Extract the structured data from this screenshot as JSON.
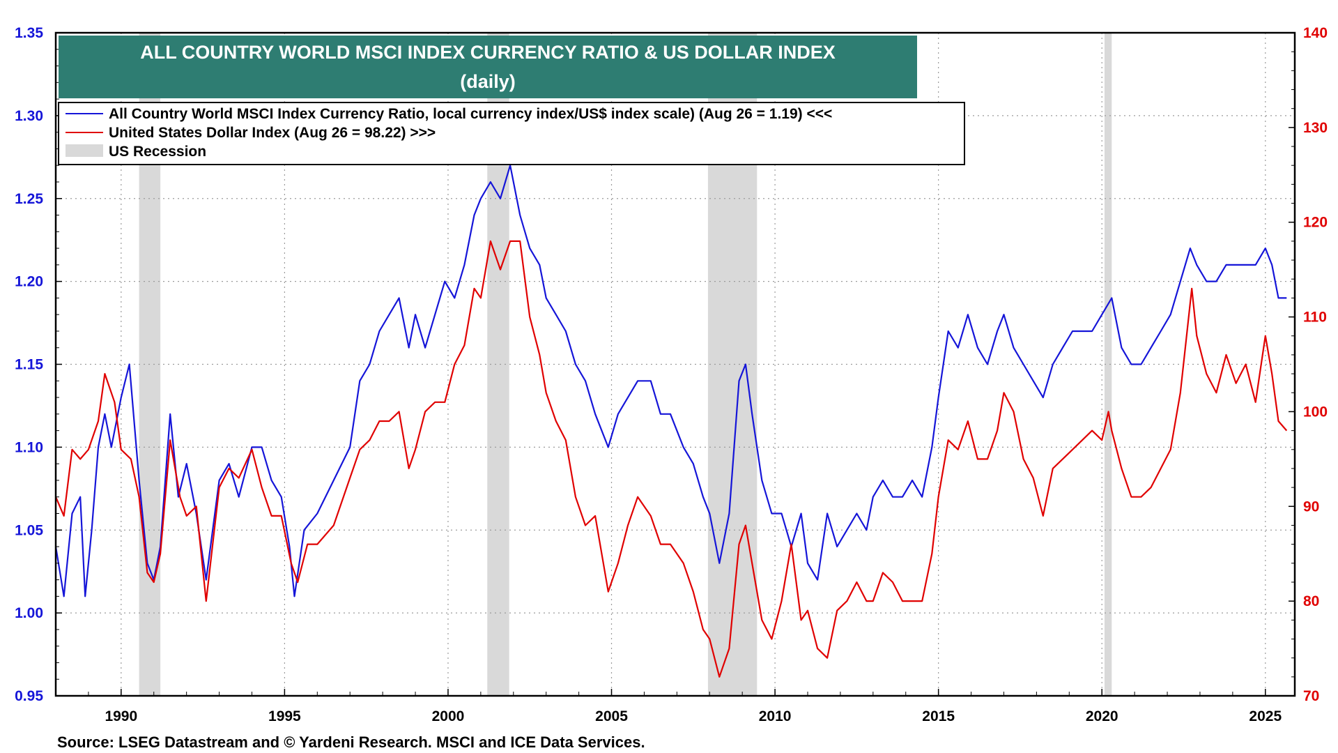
{
  "chart_data": {
    "type": "line",
    "title": "ALL COUNTRY WORLD MSCI INDEX CURRENCY RATIO & US DOLLAR INDEX",
    "subtitle": "(daily)",
    "source": "Source: LSEG Datastream and © Yardeni Research. MSCI and ICE Data Services.",
    "xlim": [
      1988.0,
      2025.9
    ],
    "x_ticks": [
      1990,
      1995,
      2000,
      2005,
      2010,
      2015,
      2020,
      2025
    ],
    "x_tick_labels": [
      "1990",
      "1995",
      "2000",
      "2005",
      "2010",
      "2015",
      "2020",
      "2025"
    ],
    "y_left": {
      "lim": [
        0.95,
        1.35
      ],
      "ticks": [
        0.95,
        1.0,
        1.05,
        1.1,
        1.15,
        1.2,
        1.25,
        1.3,
        1.35
      ],
      "tick_labels": [
        "0.95",
        "1.00",
        "1.05",
        "1.10",
        "1.15",
        "1.20",
        "1.25",
        "1.30",
        "1.35"
      ],
      "color": "#1515d8"
    },
    "y_right": {
      "lim": [
        70,
        140
      ],
      "ticks": [
        70,
        80,
        90,
        100,
        110,
        120,
        130,
        140
      ],
      "tick_labels": [
        "70",
        "80",
        "90",
        "100",
        "110",
        "120",
        "130",
        "140"
      ],
      "color": "#e00000"
    },
    "grid": true,
    "legend_position": "top-left",
    "recessions": [
      {
        "start": 1990.55,
        "end": 1991.2
      },
      {
        "start": 2001.2,
        "end": 2001.87
      },
      {
        "start": 2007.95,
        "end": 2009.45
      },
      {
        "start": 2020.08,
        "end": 2020.3
      }
    ],
    "recession_color": "#d9d9d9",
    "recession_label": "US Recession",
    "series": [
      {
        "name": "All Country World MSCI Index Currency Ratio, local currency index/US$ index scale) (Aug 26 = 1.19) <<<",
        "axis": "left",
        "color": "#1515d8",
        "points": [
          [
            1988.0,
            1.04
          ],
          [
            1988.25,
            1.01
          ],
          [
            1988.5,
            1.06
          ],
          [
            1988.75,
            1.07
          ],
          [
            1988.9,
            1.01
          ],
          [
            1989.1,
            1.05
          ],
          [
            1989.3,
            1.1
          ],
          [
            1989.5,
            1.12
          ],
          [
            1989.7,
            1.1
          ],
          [
            1990.0,
            1.13
          ],
          [
            1990.25,
            1.15
          ],
          [
            1990.55,
            1.08
          ],
          [
            1990.8,
            1.03
          ],
          [
            1991.0,
            1.02
          ],
          [
            1991.2,
            1.04
          ],
          [
            1991.5,
            1.12
          ],
          [
            1991.75,
            1.07
          ],
          [
            1992.0,
            1.09
          ],
          [
            1992.3,
            1.06
          ],
          [
            1992.6,
            1.02
          ],
          [
            1992.8,
            1.05
          ],
          [
            1993.0,
            1.08
          ],
          [
            1993.3,
            1.09
          ],
          [
            1993.6,
            1.07
          ],
          [
            1994.0,
            1.1
          ],
          [
            1994.3,
            1.1
          ],
          [
            1994.6,
            1.08
          ],
          [
            1994.9,
            1.07
          ],
          [
            1995.15,
            1.04
          ],
          [
            1995.3,
            1.01
          ],
          [
            1995.6,
            1.05
          ],
          [
            1996.0,
            1.06
          ],
          [
            1996.5,
            1.08
          ],
          [
            1997.0,
            1.1
          ],
          [
            1997.3,
            1.14
          ],
          [
            1997.6,
            1.15
          ],
          [
            1997.9,
            1.17
          ],
          [
            1998.2,
            1.18
          ],
          [
            1998.5,
            1.19
          ],
          [
            1998.8,
            1.16
          ],
          [
            1999.0,
            1.18
          ],
          [
            1999.3,
            1.16
          ],
          [
            1999.6,
            1.18
          ],
          [
            1999.9,
            1.2
          ],
          [
            2000.2,
            1.19
          ],
          [
            2000.5,
            1.21
          ],
          [
            2000.8,
            1.24
          ],
          [
            2001.0,
            1.25
          ],
          [
            2001.3,
            1.26
          ],
          [
            2001.6,
            1.25
          ],
          [
            2001.9,
            1.27
          ],
          [
            2002.2,
            1.24
          ],
          [
            2002.5,
            1.22
          ],
          [
            2002.8,
            1.21
          ],
          [
            2003.0,
            1.19
          ],
          [
            2003.3,
            1.18
          ],
          [
            2003.6,
            1.17
          ],
          [
            2003.9,
            1.15
          ],
          [
            2004.2,
            1.14
          ],
          [
            2004.5,
            1.12
          ],
          [
            2004.9,
            1.1
          ],
          [
            2005.2,
            1.12
          ],
          [
            2005.5,
            1.13
          ],
          [
            2005.8,
            1.14
          ],
          [
            2006.2,
            1.14
          ],
          [
            2006.5,
            1.12
          ],
          [
            2006.8,
            1.12
          ],
          [
            2007.2,
            1.1
          ],
          [
            2007.5,
            1.09
          ],
          [
            2007.8,
            1.07
          ],
          [
            2008.0,
            1.06
          ],
          [
            2008.3,
            1.03
          ],
          [
            2008.6,
            1.06
          ],
          [
            2008.9,
            1.14
          ],
          [
            2009.1,
            1.15
          ],
          [
            2009.3,
            1.12
          ],
          [
            2009.6,
            1.08
          ],
          [
            2009.9,
            1.06
          ],
          [
            2010.2,
            1.06
          ],
          [
            2010.5,
            1.04
          ],
          [
            2010.8,
            1.06
          ],
          [
            2011.0,
            1.03
          ],
          [
            2011.3,
            1.02
          ],
          [
            2011.6,
            1.06
          ],
          [
            2011.9,
            1.04
          ],
          [
            2012.2,
            1.05
          ],
          [
            2012.5,
            1.06
          ],
          [
            2012.8,
            1.05
          ],
          [
            2013.0,
            1.07
          ],
          [
            2013.3,
            1.08
          ],
          [
            2013.6,
            1.07
          ],
          [
            2013.9,
            1.07
          ],
          [
            2014.2,
            1.08
          ],
          [
            2014.5,
            1.07
          ],
          [
            2014.8,
            1.1
          ],
          [
            2015.0,
            1.13
          ],
          [
            2015.3,
            1.17
          ],
          [
            2015.6,
            1.16
          ],
          [
            2015.9,
            1.18
          ],
          [
            2016.2,
            1.16
          ],
          [
            2016.5,
            1.15
          ],
          [
            2016.8,
            1.17
          ],
          [
            2017.0,
            1.18
          ],
          [
            2017.3,
            1.16
          ],
          [
            2017.6,
            1.15
          ],
          [
            2017.9,
            1.14
          ],
          [
            2018.2,
            1.13
          ],
          [
            2018.5,
            1.15
          ],
          [
            2018.8,
            1.16
          ],
          [
            2019.1,
            1.17
          ],
          [
            2019.4,
            1.17
          ],
          [
            2019.7,
            1.17
          ],
          [
            2020.0,
            1.18
          ],
          [
            2020.3,
            1.19
          ],
          [
            2020.6,
            1.16
          ],
          [
            2020.9,
            1.15
          ],
          [
            2021.2,
            1.15
          ],
          [
            2021.5,
            1.16
          ],
          [
            2021.8,
            1.17
          ],
          [
            2022.1,
            1.18
          ],
          [
            2022.4,
            1.2
          ],
          [
            2022.7,
            1.22
          ],
          [
            2022.9,
            1.21
          ],
          [
            2023.2,
            1.2
          ],
          [
            2023.5,
            1.2
          ],
          [
            2023.8,
            1.21
          ],
          [
            2024.1,
            1.21
          ],
          [
            2024.4,
            1.21
          ],
          [
            2024.7,
            1.21
          ],
          [
            2025.0,
            1.22
          ],
          [
            2025.2,
            1.21
          ],
          [
            2025.4,
            1.19
          ],
          [
            2025.65,
            1.19
          ]
        ]
      },
      {
        "name": "United States Dollar Index (Aug 26 = 98.22) >>>",
        "axis": "right",
        "color": "#e00000",
        "points": [
          [
            1988.0,
            91
          ],
          [
            1988.25,
            89
          ],
          [
            1988.5,
            96
          ],
          [
            1988.75,
            95
          ],
          [
            1989.0,
            96
          ],
          [
            1989.3,
            99
          ],
          [
            1989.5,
            104
          ],
          [
            1989.8,
            101
          ],
          [
            1990.0,
            96
          ],
          [
            1990.3,
            95
          ],
          [
            1990.55,
            91
          ],
          [
            1990.8,
            83
          ],
          [
            1991.0,
            82
          ],
          [
            1991.2,
            85
          ],
          [
            1991.5,
            97
          ],
          [
            1991.8,
            91
          ],
          [
            1992.0,
            89
          ],
          [
            1992.3,
            90
          ],
          [
            1992.6,
            80
          ],
          [
            1992.8,
            86
          ],
          [
            1993.0,
            92
          ],
          [
            1993.3,
            94
          ],
          [
            1993.6,
            93
          ],
          [
            1994.0,
            96
          ],
          [
            1994.3,
            92
          ],
          [
            1994.6,
            89
          ],
          [
            1994.9,
            89
          ],
          [
            1995.2,
            84
          ],
          [
            1995.4,
            82
          ],
          [
            1995.7,
            86
          ],
          [
            1996.0,
            86
          ],
          [
            1996.5,
            88
          ],
          [
            1997.0,
            93
          ],
          [
            1997.3,
            96
          ],
          [
            1997.6,
            97
          ],
          [
            1997.9,
            99
          ],
          [
            1998.2,
            99
          ],
          [
            1998.5,
            100
          ],
          [
            1998.8,
            94
          ],
          [
            1999.0,
            96
          ],
          [
            1999.3,
            100
          ],
          [
            1999.6,
            101
          ],
          [
            1999.9,
            101
          ],
          [
            2000.2,
            105
          ],
          [
            2000.5,
            107
          ],
          [
            2000.8,
            113
          ],
          [
            2001.0,
            112
          ],
          [
            2001.3,
            118
          ],
          [
            2001.6,
            115
          ],
          [
            2001.9,
            118
          ],
          [
            2002.2,
            118
          ],
          [
            2002.5,
            110
          ],
          [
            2002.8,
            106
          ],
          [
            2003.0,
            102
          ],
          [
            2003.3,
            99
          ],
          [
            2003.6,
            97
          ],
          [
            2003.9,
            91
          ],
          [
            2004.2,
            88
          ],
          [
            2004.5,
            89
          ],
          [
            2004.9,
            81
          ],
          [
            2005.2,
            84
          ],
          [
            2005.5,
            88
          ],
          [
            2005.8,
            91
          ],
          [
            2006.2,
            89
          ],
          [
            2006.5,
            86
          ],
          [
            2006.8,
            86
          ],
          [
            2007.2,
            84
          ],
          [
            2007.5,
            81
          ],
          [
            2007.8,
            77
          ],
          [
            2008.0,
            76
          ],
          [
            2008.3,
            72
          ],
          [
            2008.6,
            75
          ],
          [
            2008.9,
            86
          ],
          [
            2009.1,
            88
          ],
          [
            2009.3,
            84
          ],
          [
            2009.6,
            78
          ],
          [
            2009.9,
            76
          ],
          [
            2010.2,
            80
          ],
          [
            2010.5,
            86
          ],
          [
            2010.8,
            78
          ],
          [
            2011.0,
            79
          ],
          [
            2011.3,
            75
          ],
          [
            2011.6,
            74
          ],
          [
            2011.9,
            79
          ],
          [
            2012.2,
            80
          ],
          [
            2012.5,
            82
          ],
          [
            2012.8,
            80
          ],
          [
            2013.0,
            80
          ],
          [
            2013.3,
            83
          ],
          [
            2013.6,
            82
          ],
          [
            2013.9,
            80
          ],
          [
            2014.2,
            80
          ],
          [
            2014.5,
            80
          ],
          [
            2014.8,
            85
          ],
          [
            2015.0,
            91
          ],
          [
            2015.3,
            97
          ],
          [
            2015.6,
            96
          ],
          [
            2015.9,
            99
          ],
          [
            2016.2,
            95
          ],
          [
            2016.5,
            95
          ],
          [
            2016.8,
            98
          ],
          [
            2017.0,
            102
          ],
          [
            2017.3,
            100
          ],
          [
            2017.6,
            95
          ],
          [
            2017.9,
            93
          ],
          [
            2018.2,
            89
          ],
          [
            2018.5,
            94
          ],
          [
            2018.8,
            95
          ],
          [
            2019.1,
            96
          ],
          [
            2019.4,
            97
          ],
          [
            2019.7,
            98
          ],
          [
            2020.0,
            97
          ],
          [
            2020.2,
            100
          ],
          [
            2020.3,
            98
          ],
          [
            2020.6,
            94
          ],
          [
            2020.9,
            91
          ],
          [
            2021.2,
            91
          ],
          [
            2021.5,
            92
          ],
          [
            2021.8,
            94
          ],
          [
            2022.1,
            96
          ],
          [
            2022.4,
            102
          ],
          [
            2022.75,
            113
          ],
          [
            2022.9,
            108
          ],
          [
            2023.2,
            104
          ],
          [
            2023.5,
            102
          ],
          [
            2023.8,
            106
          ],
          [
            2024.1,
            103
          ],
          [
            2024.4,
            105
          ],
          [
            2024.7,
            101
          ],
          [
            2025.0,
            108
          ],
          [
            2025.2,
            104
          ],
          [
            2025.4,
            99
          ],
          [
            2025.65,
            98
          ]
        ]
      }
    ],
    "legend": [
      "All Country World MSCI Index Currency Ratio, local currency index/US$ index scale) (Aug 26 = 1.19) <<<",
      "United States Dollar Index (Aug 26 = 98.22) >>>",
      "US Recession"
    ]
  }
}
